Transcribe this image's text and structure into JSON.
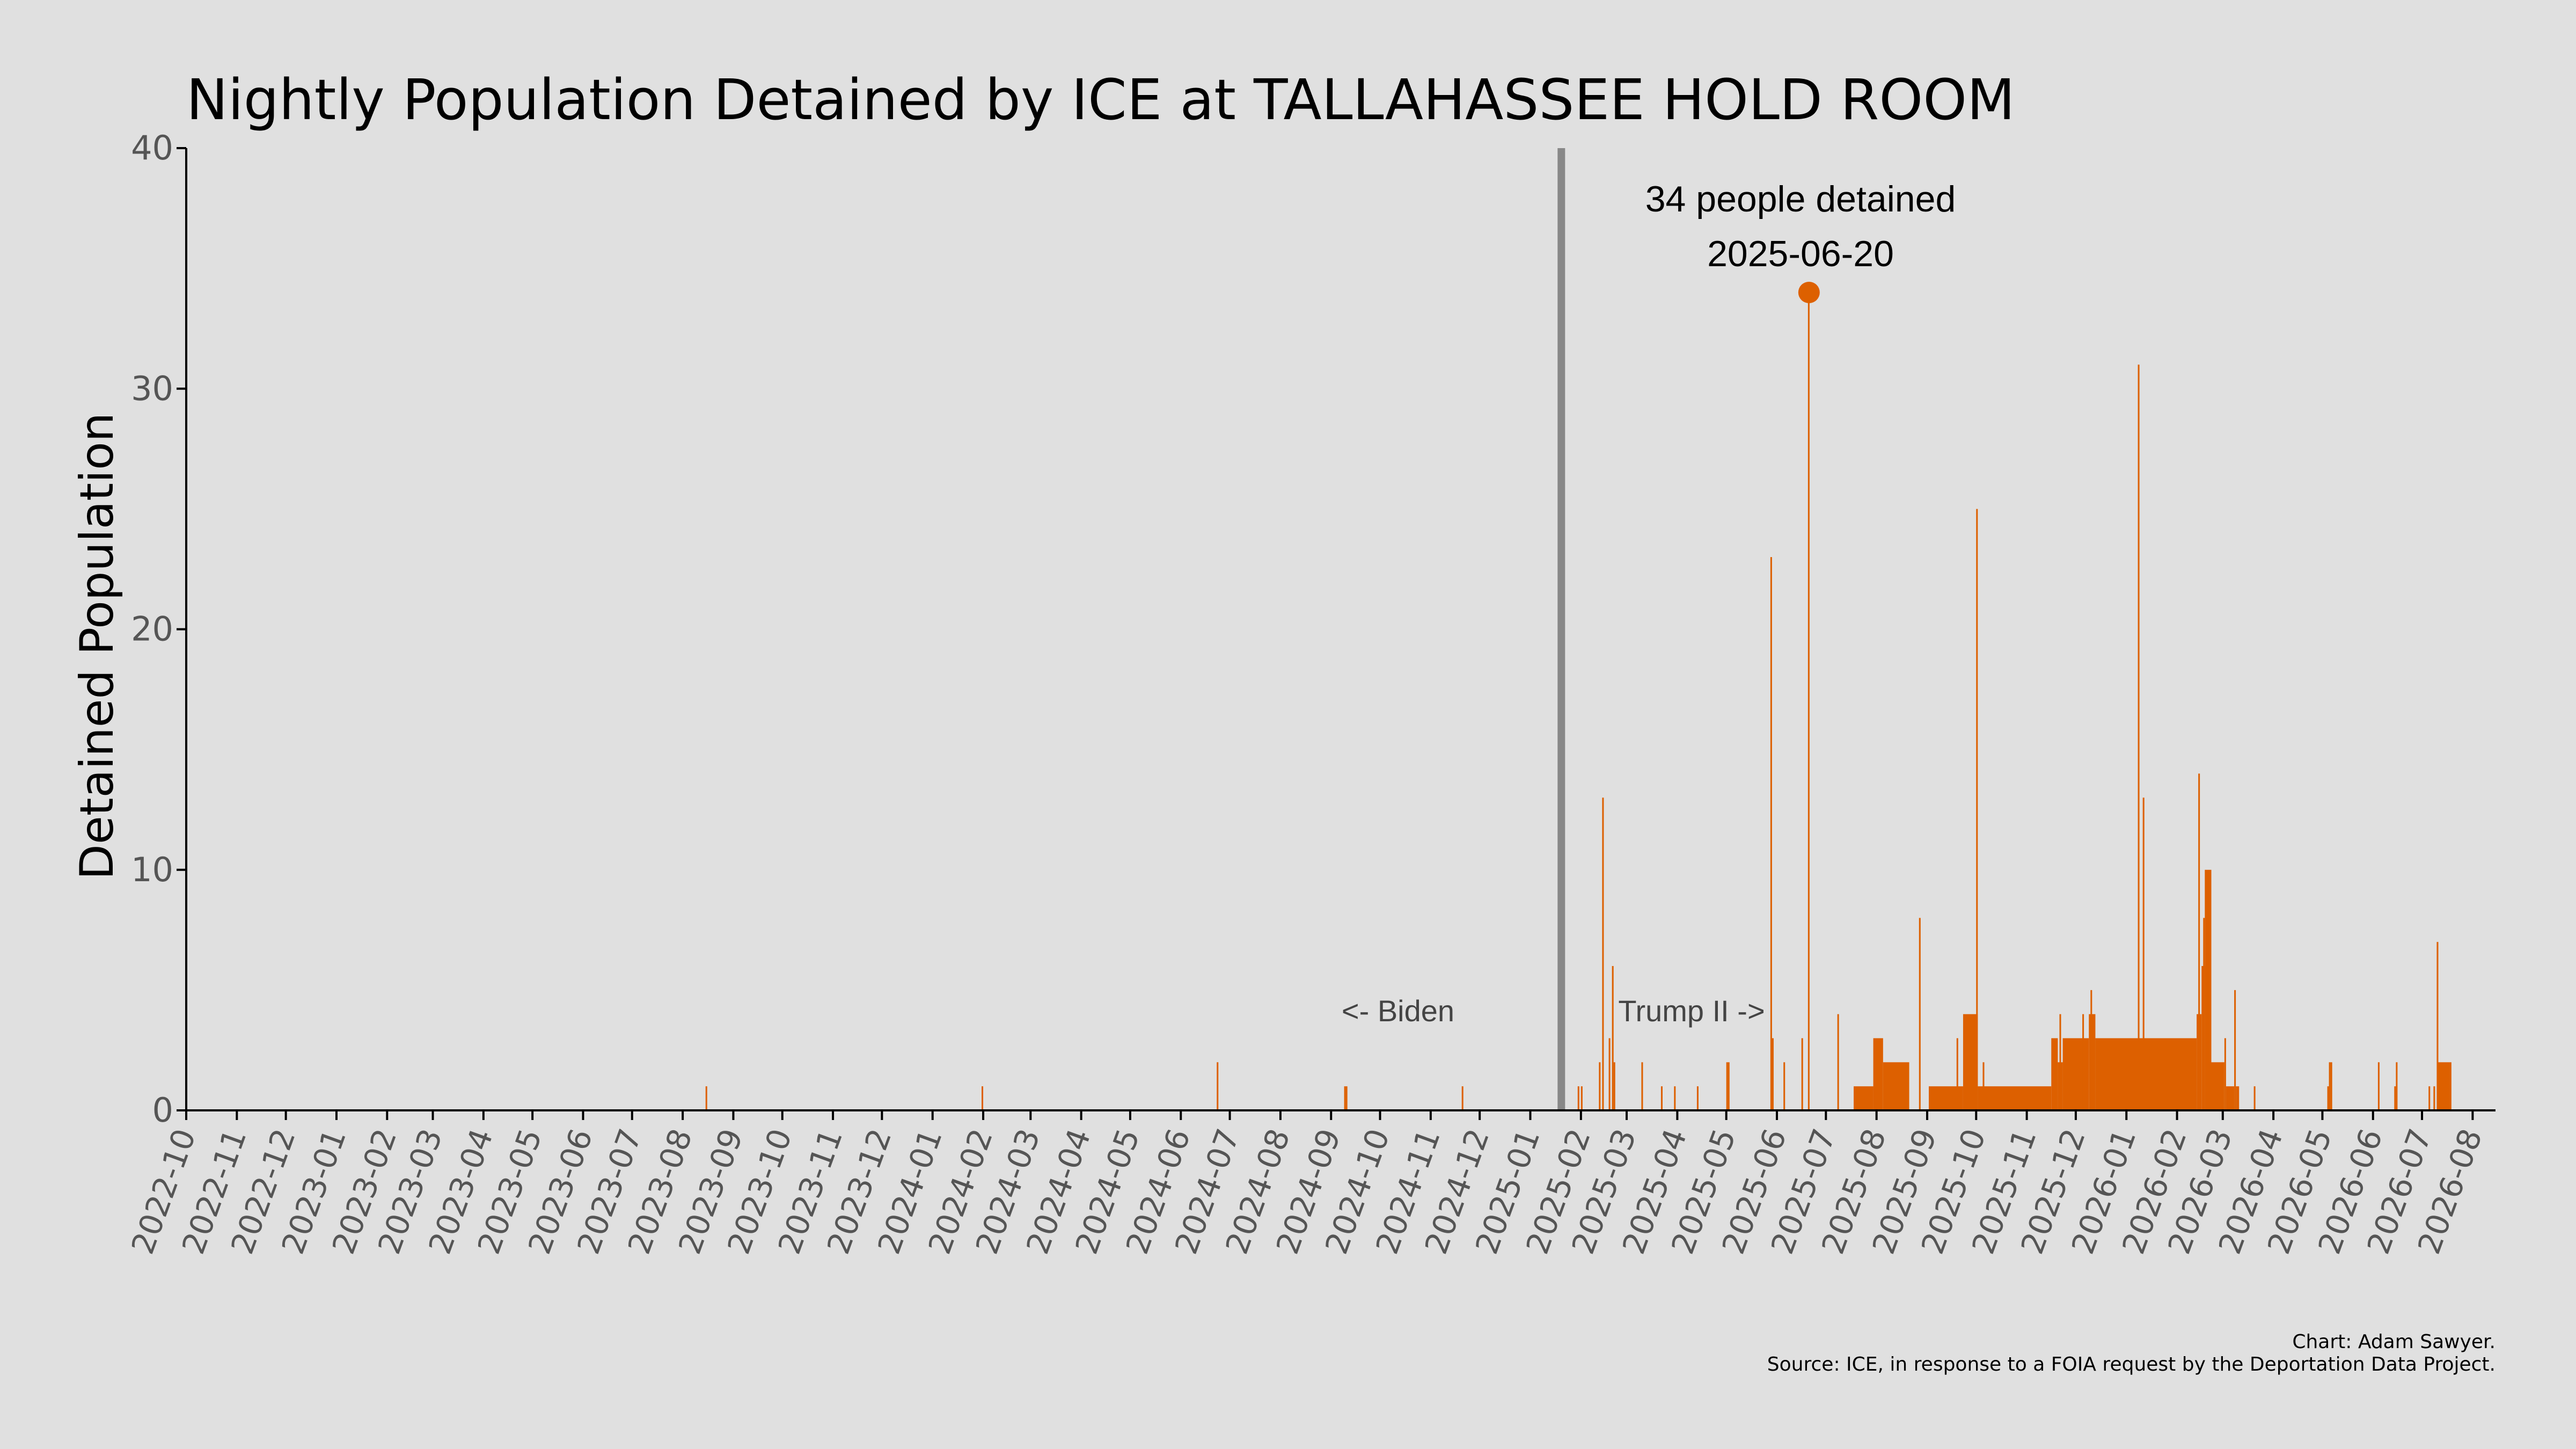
{
  "chart_data": {
    "type": "bar",
    "title": "Nightly Population Detained by ICE at TALLAHASSEE HOLD ROOM",
    "ylabel": "Detained Population",
    "xlabel": "",
    "ylim": [
      0,
      40
    ],
    "yticks": [
      0,
      10,
      20,
      30,
      40
    ],
    "xlim": [
      "2022-10-01",
      "2026-08-15"
    ],
    "xticks": [
      "2022-10",
      "2022-11",
      "2022-12",
      "2023-01",
      "2023-02",
      "2023-03",
      "2023-04",
      "2023-05",
      "2023-06",
      "2023-07",
      "2023-08",
      "2023-09",
      "2023-10",
      "2023-11",
      "2023-12",
      "2024-01",
      "2024-02",
      "2024-03",
      "2024-04",
      "2024-05",
      "2024-06",
      "2024-07",
      "2024-08",
      "2024-09",
      "2024-10",
      "2024-11",
      "2024-12",
      "2025-01",
      "2025-02",
      "2025-03",
      "2025-04",
      "2025-05",
      "2025-06",
      "2025-07",
      "2025-08",
      "2025-09",
      "2025-10",
      "2025-11",
      "2025-12",
      "2026-01",
      "2026-02",
      "2026-03",
      "2026-04",
      "2026-05",
      "2026-06",
      "2026-07",
      "2026-08"
    ],
    "bar_color": "#dd6000",
    "divider": {
      "date": "2025-01-20",
      "color": "#888888"
    },
    "era_labels": {
      "before": "<- Biden",
      "after": "Trump II ->"
    },
    "peak": {
      "date": "2025-06-20",
      "value": 34,
      "label_line1": "34 people detained",
      "label_line2": "2025-06-20"
    },
    "credit_line1": "Chart: Adam Sawyer.",
    "credit_line2": "Source: ICE, in response to a FOIA request by the Deportation Data Project.",
    "spikes": [
      {
        "date": "2023-08-15",
        "value": 1
      },
      {
        "date": "2024-01-31",
        "value": 1
      },
      {
        "date": "2024-06-23",
        "value": 2
      },
      {
        "date": "2024-09-09",
        "value": 1
      },
      {
        "date": "2024-09-10",
        "value": 1
      },
      {
        "date": "2024-11-20",
        "value": 1
      },
      {
        "date": "2025-01-30",
        "value": 1
      },
      {
        "date": "2025-02-01",
        "value": 1
      },
      {
        "date": "2025-02-12",
        "value": 2
      },
      {
        "date": "2025-02-14",
        "value": 13
      },
      {
        "date": "2025-02-18",
        "value": 3
      },
      {
        "date": "2025-02-20",
        "value": 6
      },
      {
        "date": "2025-02-21",
        "value": 2
      },
      {
        "date": "2025-03-10",
        "value": 2
      },
      {
        "date": "2025-03-22",
        "value": 1
      },
      {
        "date": "2025-03-30",
        "value": 1
      },
      {
        "date": "2025-04-13",
        "value": 1
      },
      {
        "date": "2025-05-01",
        "value": 2
      },
      {
        "date": "2025-05-02",
        "value": 2
      },
      {
        "date": "2025-05-28",
        "value": 23
      },
      {
        "date": "2025-05-29",
        "value": 3
      },
      {
        "date": "2025-06-05",
        "value": 2
      },
      {
        "date": "2025-06-16",
        "value": 3
      },
      {
        "date": "2025-06-20",
        "value": 34
      },
      {
        "date": "2025-07-08",
        "value": 4
      },
      {
        "date": "2025-08-27",
        "value": 8
      },
      {
        "date": "2025-09-19",
        "value": 3
      },
      {
        "date": "2025-09-28",
        "value": 2
      },
      {
        "date": "2025-10-01",
        "value": 25
      },
      {
        "date": "2025-10-05",
        "value": 2
      },
      {
        "date": "2025-11-17",
        "value": 2
      },
      {
        "date": "2025-11-21",
        "value": 4
      },
      {
        "date": "2025-12-05",
        "value": 4
      },
      {
        "date": "2025-12-10",
        "value": 5
      },
      {
        "date": "2026-01-08",
        "value": 31
      },
      {
        "date": "2026-01-11",
        "value": 13
      },
      {
        "date": "2026-02-14",
        "value": 14
      },
      {
        "date": "2026-02-17",
        "value": 8
      },
      {
        "date": "2026-03-02",
        "value": 3
      },
      {
        "date": "2026-03-08",
        "value": 5
      },
      {
        "date": "2026-03-20",
        "value": 1
      },
      {
        "date": "2026-05-04",
        "value": 1
      },
      {
        "date": "2026-05-05",
        "value": 2
      },
      {
        "date": "2026-05-06",
        "value": 2
      },
      {
        "date": "2026-06-04",
        "value": 2
      },
      {
        "date": "2026-06-14",
        "value": 1
      },
      {
        "date": "2026-06-15",
        "value": 2
      },
      {
        "date": "2026-07-05",
        "value": 1
      },
      {
        "date": "2026-07-08",
        "value": 1
      },
      {
        "date": "2026-07-10",
        "value": 7
      }
    ],
    "ranges": [
      {
        "start": "2025-07-18",
        "end": "2025-07-29",
        "value": 1
      },
      {
        "start": "2025-07-30",
        "end": "2025-08-04",
        "value": 3
      },
      {
        "start": "2025-08-05",
        "end": "2025-08-20",
        "value": 2
      },
      {
        "start": "2025-09-02",
        "end": "2025-09-22",
        "value": 1
      },
      {
        "start": "2025-09-23",
        "end": "2025-10-01",
        "value": 4
      },
      {
        "start": "2025-10-02",
        "end": "2025-11-15",
        "value": 1
      },
      {
        "start": "2025-11-16",
        "end": "2025-11-19",
        "value": 3
      },
      {
        "start": "2025-11-20",
        "end": "2025-11-22",
        "value": 2
      },
      {
        "start": "2025-11-23",
        "end": "2025-12-08",
        "value": 3
      },
      {
        "start": "2025-12-09",
        "end": "2025-12-12",
        "value": 4
      },
      {
        "start": "2025-12-13",
        "end": "2026-02-12",
        "value": 3
      },
      {
        "start": "2026-02-13",
        "end": "2026-02-15",
        "value": 4
      },
      {
        "start": "2026-02-16",
        "end": "2026-02-17",
        "value": 6
      },
      {
        "start": "2026-02-18",
        "end": "2026-02-21",
        "value": 10
      },
      {
        "start": "2026-02-22",
        "end": "2026-03-01",
        "value": 2
      },
      {
        "start": "2026-03-03",
        "end": "2026-03-07",
        "value": 1
      },
      {
        "start": "2026-03-09",
        "end": "2026-03-10",
        "value": 1
      },
      {
        "start": "2026-07-11",
        "end": "2026-07-18",
        "value": 2
      }
    ]
  }
}
